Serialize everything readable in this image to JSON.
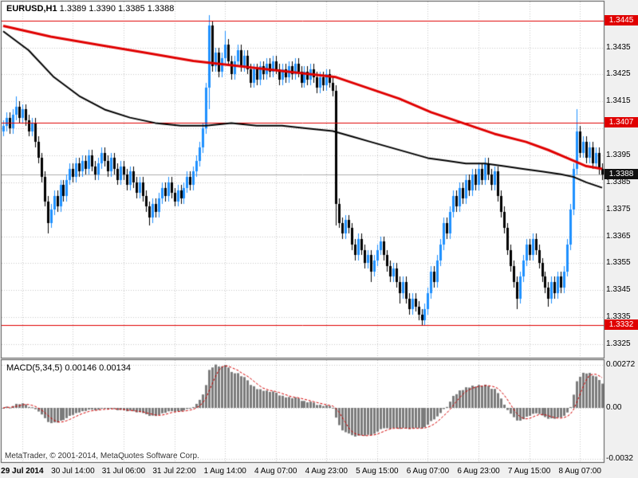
{
  "header": {
    "symbol": "EURUSD,H1",
    "ohlc": "1.3389 1.3390 1.3385 1.3388"
  },
  "footer": {
    "copyright": "MetaTrader, © 2001-2014, MetaQuotes Software Corp."
  },
  "colors": {
    "up": "#1e90ff",
    "down": "#000000",
    "ma_slow": "#e00000",
    "ma_fast": "#000000",
    "hline": "#e00000",
    "current_tag_bg": "#111111",
    "grid": "#c8c8c8",
    "current_line": "#b0b0b0",
    "histogram": "#7b7b7b",
    "signal": "#d40000",
    "pane_bg": "#ffffff",
    "window_bg": "#f0f0f0",
    "border": "#555555"
  },
  "price_axis": {
    "labels": [
      "1.3435",
      "1.3425",
      "1.3415",
      "1.3395",
      "1.3385",
      "1.3375",
      "1.3365",
      "1.3355",
      "1.3345",
      "1.3335",
      "1.3325"
    ],
    "grid_values": [
      1.3445,
      1.3435,
      1.3425,
      1.3415,
      1.3405,
      1.3395,
      1.3385,
      1.3375,
      1.3365,
      1.3355,
      1.3345,
      1.3335,
      1.3325
    ]
  },
  "hlines": [
    {
      "value": 1.3445,
      "label": "1.3445"
    },
    {
      "value": 1.3407,
      "label": "1.3407"
    },
    {
      "value": 1.3332,
      "label": "1.3332"
    }
  ],
  "current_price": {
    "value": 1.3388,
    "label": "1.3388"
  },
  "time_axis": {
    "labels": [
      "29 Jul 2014",
      "30 Jul 14:00",
      "31 Jul 06:00",
      "31 Jul 22:00",
      "1 Aug 14:00",
      "4 Aug 07:00",
      "4 Aug 23:00",
      "5 Aug 15:00",
      "6 Aug 07:00",
      "6 Aug 23:00",
      "7 Aug 15:00",
      "8 Aug 07:00"
    ],
    "bar_indices": [
      6,
      22,
      38,
      54,
      70,
      86,
      102,
      118,
      134,
      150,
      166,
      182
    ]
  },
  "chart_data": [
    {
      "type": "candlestick",
      "title": "EURUSD,H1",
      "timeframe_hours": 1,
      "ylim": [
        1.332,
        1.3452
      ],
      "first_open": 1.3404,
      "default_wick": 0.0002,
      "closes": [
        1.3406,
        1.3409,
        1.3405,
        1.341,
        1.3413,
        1.3409,
        1.3412,
        1.3408,
        1.3404,
        1.3407,
        1.34,
        1.3394,
        1.3387,
        1.3378,
        1.337,
        1.3375,
        1.338,
        1.3376,
        1.3384,
        1.338,
        1.3386,
        1.339,
        1.3387,
        1.3392,
        1.3389,
        1.3393,
        1.339,
        1.3395,
        1.3391,
        1.3388,
        1.3392,
        1.3396,
        1.3393,
        1.3389,
        1.3394,
        1.339,
        1.3386,
        1.3391,
        1.3388,
        1.3384,
        1.3389,
        1.3385,
        1.3381,
        1.3385,
        1.338,
        1.3376,
        1.3372,
        1.3377,
        1.3374,
        1.3379,
        1.3383,
        1.338,
        1.3385,
        1.3381,
        1.3378,
        1.3382,
        1.3379,
        1.3383,
        1.3387,
        1.3384,
        1.3389,
        1.3393,
        1.3398,
        1.3405,
        1.342,
        1.3443,
        1.3428,
        1.3433,
        1.3426,
        1.3431,
        1.3436,
        1.343,
        1.3425,
        1.343,
        1.3434,
        1.3428,
        1.3432,
        1.3427,
        1.3422,
        1.3427,
        1.3423,
        1.3428,
        1.3425,
        1.3429,
        1.3426,
        1.343,
        1.3427,
        1.3423,
        1.3427,
        1.3424,
        1.3428,
        1.3425,
        1.3429,
        1.3426,
        1.3422,
        1.3426,
        1.3423,
        1.3427,
        1.3424,
        1.342,
        1.3424,
        1.3421,
        1.3425,
        1.3422,
        1.3419,
        1.3377,
        1.337,
        1.3366,
        1.3371,
        1.3368,
        1.3362,
        1.3358,
        1.3364,
        1.336,
        1.3355,
        1.3358,
        1.3352,
        1.3356,
        1.336,
        1.3363,
        1.3358,
        1.3354,
        1.335,
        1.3353,
        1.3348,
        1.3344,
        1.3348,
        1.3342,
        1.3338,
        1.3342,
        1.3339,
        1.3336,
        1.3334,
        1.3338,
        1.3344,
        1.3352,
        1.3348,
        1.3356,
        1.3362,
        1.337,
        1.3366,
        1.3374,
        1.338,
        1.3376,
        1.3383,
        1.3379,
        1.3386,
        1.3382,
        1.3388,
        1.3384,
        1.339,
        1.3386,
        1.3392,
        1.3388,
        1.3384,
        1.3389,
        1.338,
        1.3374,
        1.3368,
        1.336,
        1.3354,
        1.3348,
        1.3342,
        1.335,
        1.3356,
        1.3362,
        1.3358,
        1.3364,
        1.336,
        1.3355,
        1.335,
        1.3346,
        1.3342,
        1.3348,
        1.3344,
        1.335,
        1.3346,
        1.3352,
        1.3362,
        1.3375,
        1.339,
        1.3404,
        1.3396,
        1.34,
        1.3394,
        1.3398,
        1.3392,
        1.3396,
        1.339,
        1.3388
      ],
      "wick_overrides": {
        "4": {
          "h": 1.3417
        },
        "14": {
          "l": 1.3366
        },
        "46": {
          "l": 1.3369
        },
        "65": {
          "h": 1.3447,
          "l": 1.3412
        },
        "70": {
          "h": 1.3441
        },
        "105": {
          "l": 1.3369
        },
        "116": {
          "l": 1.3348
        },
        "125": {
          "l": 1.334
        },
        "132": {
          "l": 1.3332
        },
        "162": {
          "l": 1.3338
        },
        "172": {
          "l": 1.3339
        },
        "181": {
          "h": 1.3412
        }
      },
      "moving_averages": [
        {
          "name": "slow-ma-red",
          "color": "#e00000",
          "width": 3,
          "points": [
            [
              0,
              1.3443
            ],
            [
              15,
              1.3439
            ],
            [
              30,
              1.3436
            ],
            [
              45,
              1.3433
            ],
            [
              60,
              1.343
            ],
            [
              75,
              1.3428
            ],
            [
              90,
              1.3426
            ],
            [
              105,
              1.3424
            ],
            [
              115,
              1.342
            ],
            [
              125,
              1.3416
            ],
            [
              135,
              1.3411
            ],
            [
              145,
              1.3407
            ],
            [
              155,
              1.3403
            ],
            [
              165,
              1.34
            ],
            [
              172,
              1.3397
            ],
            [
              178,
              1.3394
            ],
            [
              184,
              1.3391
            ],
            [
              189,
              1.339
            ]
          ]
        },
        {
          "name": "fast-ma-black",
          "color": "#000000",
          "width": 2,
          "points": [
            [
              0,
              1.3441
            ],
            [
              8,
              1.3434
            ],
            [
              16,
              1.3424
            ],
            [
              24,
              1.3417
            ],
            [
              32,
              1.3412
            ],
            [
              40,
              1.3409
            ],
            [
              48,
              1.3407
            ],
            [
              56,
              1.3406
            ],
            [
              64,
              1.3406
            ],
            [
              72,
              1.3407
            ],
            [
              80,
              1.3406
            ],
            [
              88,
              1.3406
            ],
            [
              96,
              1.3405
            ],
            [
              104,
              1.3404
            ],
            [
              110,
              1.3402
            ],
            [
              116,
              1.34
            ],
            [
              122,
              1.3398
            ],
            [
              128,
              1.3396
            ],
            [
              134,
              1.3394
            ],
            [
              140,
              1.3393
            ],
            [
              146,
              1.3392
            ],
            [
              152,
              1.3392
            ],
            [
              158,
              1.3391
            ],
            [
              164,
              1.339
            ],
            [
              170,
              1.3389
            ],
            [
              176,
              1.3388
            ],
            [
              180,
              1.3387
            ],
            [
              184,
              1.3385
            ],
            [
              189,
              1.3383
            ]
          ]
        }
      ]
    },
    {
      "type": "bar",
      "title": "MACD(5,34,5)",
      "values_text": "0.00146 0.00134",
      "params": {
        "fast": 5,
        "slow": 34,
        "signal": 5
      },
      "ylim": [
        -0.0034,
        0.003
      ],
      "axis_ticks": [
        {
          "value": 0.00272,
          "label": "0.00272"
        },
        {
          "value": 0,
          "label": "0.00"
        },
        {
          "value": -0.0032,
          "label": "-0.0032"
        }
      ],
      "scale_peak": 0.00272,
      "scale_trough": -0.0018,
      "derived": "histogram = EMA(fast) - EMA(slow) of main-chart closes, signal = SMA(signal); normalized to the peak/trough read from the screenshot"
    }
  ]
}
